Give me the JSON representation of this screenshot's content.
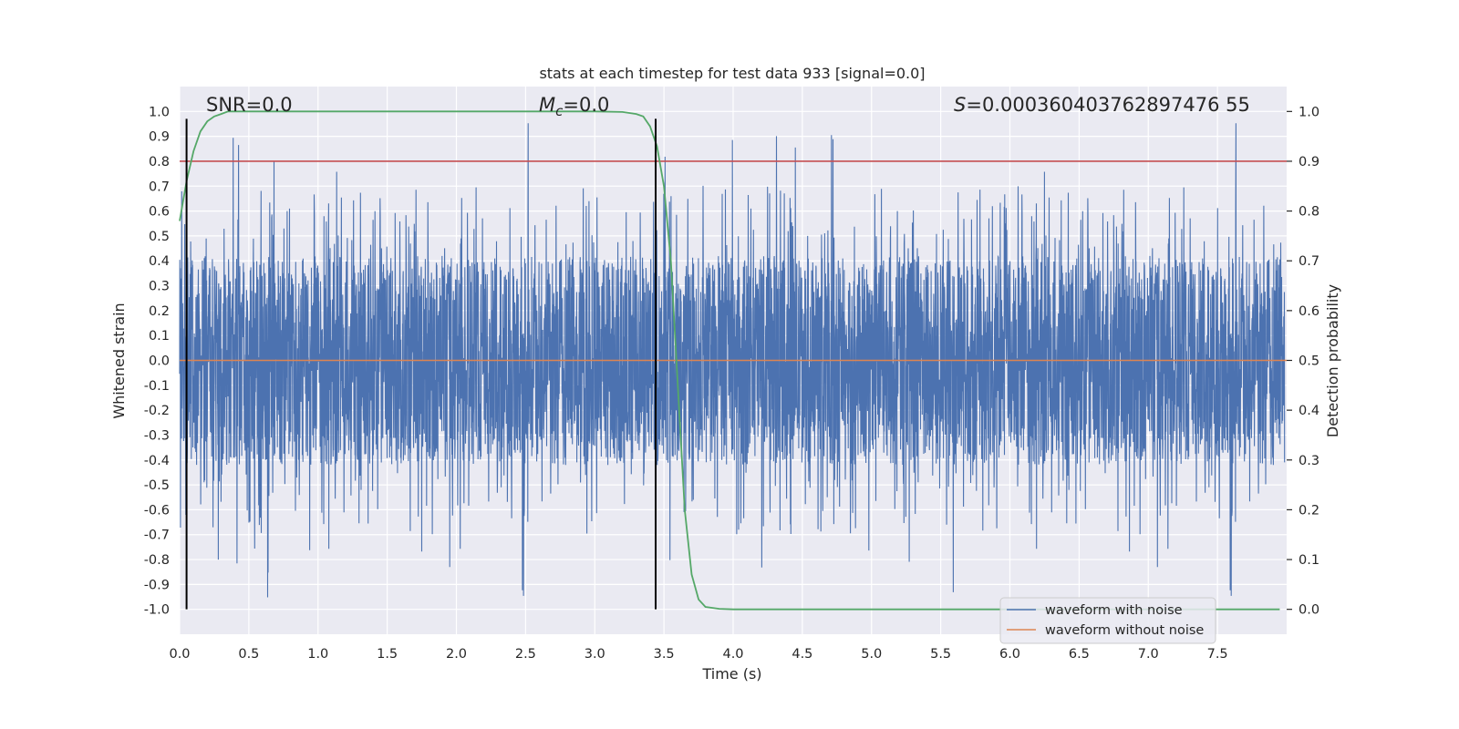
{
  "chart_data": {
    "type": "line",
    "title": "stats at each timestep for test data 933 [signal=0.0]",
    "xlabel": "Time (s)",
    "ylabel_left": "Whitened strain",
    "ylabel_right": "Detection probability",
    "xlim": [
      0.0,
      8.0
    ],
    "ylim_left": [
      -1.1,
      1.1
    ],
    "ylim_right": [
      -0.05,
      1.05
    ],
    "xticks": [
      "0.0",
      "0.5",
      "1.0",
      "1.5",
      "2.0",
      "2.5",
      "3.0",
      "3.5",
      "4.0",
      "4.5",
      "5.0",
      "5.5",
      "6.0",
      "6.5",
      "7.0",
      "7.5"
    ],
    "xtick_values": [
      0.0,
      0.5,
      1.0,
      1.5,
      2.0,
      2.5,
      3.0,
      3.5,
      4.0,
      4.5,
      5.0,
      5.5,
      6.0,
      6.5,
      7.0,
      7.5
    ],
    "yticks_left": [
      "1.0",
      "0.9",
      "0.8",
      "0.7",
      "0.6",
      "0.5",
      "0.4",
      "0.3",
      "0.2",
      "0.1",
      "0.0",
      "-0.1",
      "-0.2",
      "-0.3",
      "-0.4",
      "-0.5",
      "-0.6",
      "-0.7",
      "-0.8",
      "-0.9",
      "-1.0"
    ],
    "ytick_values_left": [
      1.0,
      0.9,
      0.8,
      0.7,
      0.6,
      0.5,
      0.4,
      0.3,
      0.2,
      0.1,
      0.0,
      -0.1,
      -0.2,
      -0.3,
      -0.4,
      -0.5,
      -0.6,
      -0.7,
      -0.8,
      -0.9,
      -1.0
    ],
    "yticks_right": [
      "1.0",
      "0.9",
      "0.8",
      "0.7",
      "0.6",
      "0.5",
      "0.4",
      "0.3",
      "0.2",
      "0.1",
      "0.0"
    ],
    "ytick_values_right": [
      1.0,
      0.9,
      0.8,
      0.7,
      0.6,
      0.5,
      0.4,
      0.3,
      0.2,
      0.1,
      0.0
    ],
    "annotations": {
      "snr": "SNR=0.0",
      "mc_symbol": "M",
      "mc_sub": "c",
      "mc_value": "=0.0",
      "s_symbol": "S",
      "s_value": "=0.000360403762897476 55"
    },
    "series": [
      {
        "name": "waveform with noise",
        "color": "#4c72b0",
        "note": "noise, amplitude envelope ~0.45 with spikes up to ~0.97 and down to ~-0.99"
      },
      {
        "name": "waveform without noise",
        "color": "#dd8452",
        "value": 0.0
      },
      {
        "name": "detection probability",
        "color": "#55a868",
        "axis": "right",
        "x": [
          0.0,
          0.05,
          0.1,
          0.15,
          0.2,
          0.25,
          0.3,
          0.35,
          0.4,
          0.5,
          1.0,
          2.0,
          3.0,
          3.2,
          3.3,
          3.35,
          3.4,
          3.45,
          3.5,
          3.55,
          3.6,
          3.65,
          3.7,
          3.75,
          3.8,
          3.9,
          4.0,
          5.0,
          6.0,
          7.0,
          7.95
        ],
        "y": [
          0.78,
          0.86,
          0.92,
          0.96,
          0.98,
          0.99,
          0.995,
          1.0,
          1.0,
          1.0,
          1.0,
          1.0,
          1.0,
          0.999,
          0.995,
          0.99,
          0.97,
          0.93,
          0.85,
          0.7,
          0.45,
          0.2,
          0.07,
          0.02,
          0.005,
          0.001,
          0.0,
          0.0,
          0.0,
          0.0,
          0.0
        ]
      }
    ],
    "threshold_line": {
      "axis": "right",
      "value": 0.9,
      "color": "#c44e52"
    },
    "vertical_lines": [
      0.05,
      3.44
    ],
    "legend": {
      "placement": "lower right",
      "entries": [
        "waveform with noise",
        "waveform without noise"
      ]
    }
  }
}
